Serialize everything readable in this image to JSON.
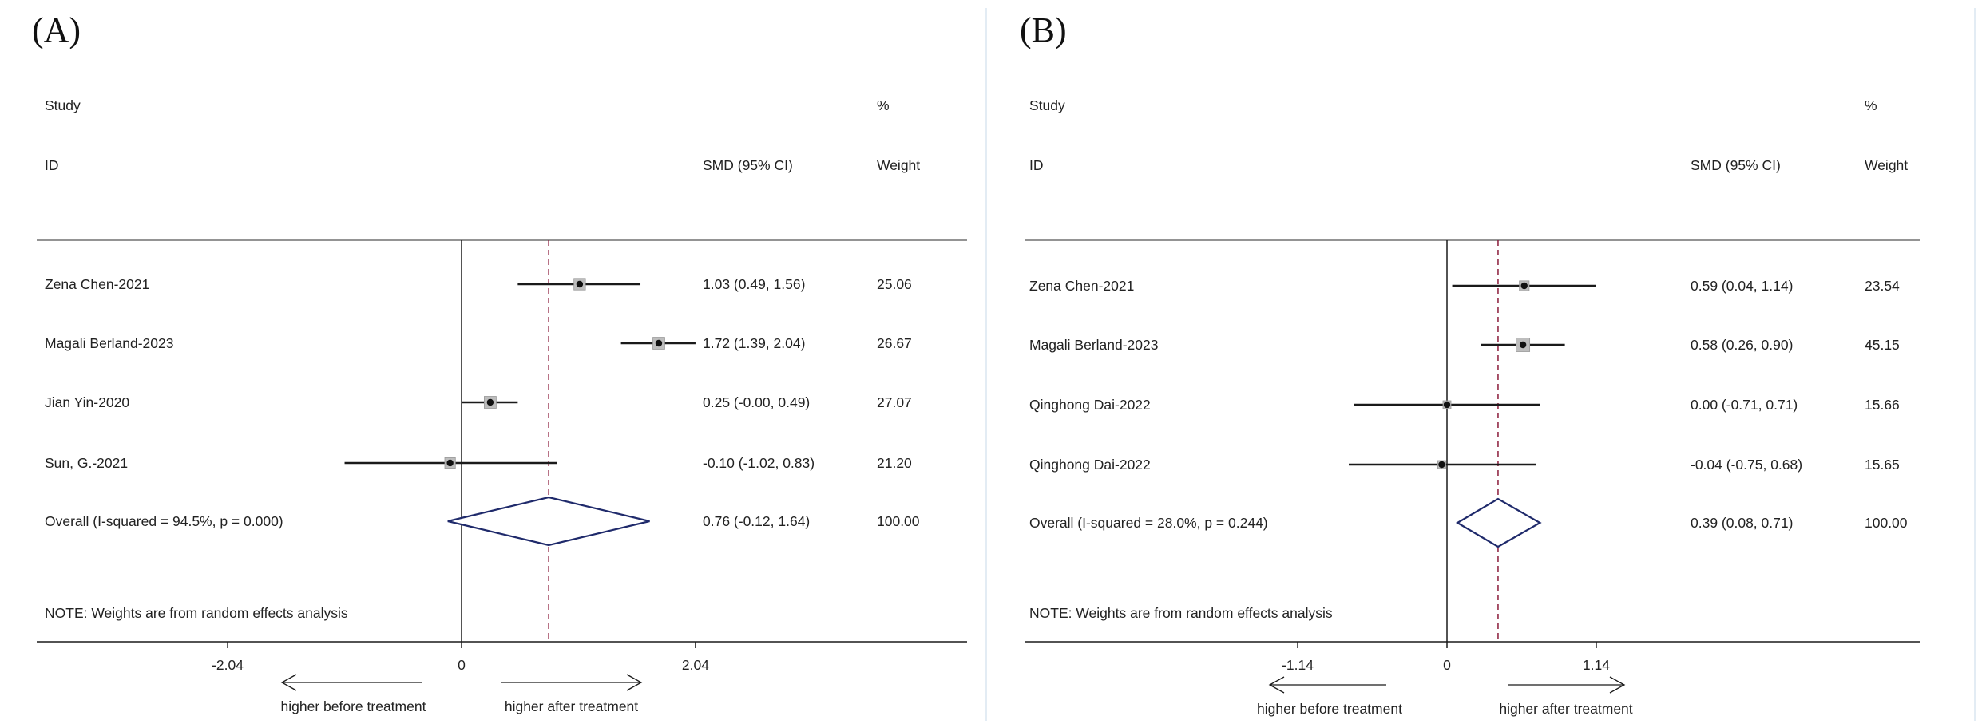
{
  "chart_data": [
    {
      "type": "forest",
      "panel_label": "(A)",
      "header": {
        "study": "Study",
        "id": "ID",
        "pct": "%",
        "effect": "SMD (95% CI)",
        "weight": "Weight"
      },
      "studies": [
        {
          "name": "Zena Chen-2021",
          "smd": 1.03,
          "lo": 0.49,
          "hi": 1.56,
          "ci_text": "1.03 (0.49, 1.56)",
          "weight": 25.06,
          "weight_text": "25.06"
        },
        {
          "name": "Magali Berland-2023",
          "smd": 1.72,
          "lo": 1.39,
          "hi": 2.04,
          "ci_text": "1.72 (1.39, 2.04)",
          "weight": 26.67,
          "weight_text": "26.67"
        },
        {
          "name": "Jian Yin-2020",
          "smd": 0.25,
          "lo": 0.0,
          "hi": 0.49,
          "ci_text": "0.25 (-0.00, 0.49)",
          "weight": 27.07,
          "weight_text": "27.07"
        },
        {
          "name": "Sun, G.-2021",
          "smd": -0.1,
          "lo": -1.02,
          "hi": 0.83,
          "ci_text": "-0.10 (-1.02, 0.83)",
          "weight": 21.2,
          "weight_text": "21.20"
        }
      ],
      "overall": {
        "label": "Overall  (I-squared = 94.5%, p = 0.000)",
        "smd": 0.76,
        "lo": -0.12,
        "hi": 1.64,
        "ci_text": "0.76 (-0.12, 1.64)",
        "weight_text": "100.00"
      },
      "note": "NOTE: Weights are from random effects analysis",
      "axis": {
        "ticks": [
          -2.04,
          0,
          2.04
        ],
        "tick_labels": [
          "-2.04",
          "0",
          "2.04"
        ],
        "xlim": [
          -2.04,
          2.04
        ]
      },
      "arrows": {
        "left": "higher before treatment",
        "right": "higher after treatment"
      }
    },
    {
      "type": "forest",
      "panel_label": "(B)",
      "header": {
        "study": "Study",
        "id": "ID",
        "pct": "%",
        "effect": "SMD (95% CI)",
        "weight": "Weight"
      },
      "studies": [
        {
          "name": "Zena Chen-2021",
          "smd": 0.59,
          "lo": 0.04,
          "hi": 1.14,
          "ci_text": "0.59 (0.04, 1.14)",
          "weight": 23.54,
          "weight_text": "23.54"
        },
        {
          "name": "Magali Berland-2023",
          "smd": 0.58,
          "lo": 0.26,
          "hi": 0.9,
          "ci_text": "0.58 (0.26, 0.90)",
          "weight": 45.15,
          "weight_text": "45.15"
        },
        {
          "name": "Qinghong Dai-2022",
          "smd": 0.0,
          "lo": -0.71,
          "hi": 0.71,
          "ci_text": "0.00 (-0.71, 0.71)",
          "weight": 15.66,
          "weight_text": "15.66"
        },
        {
          "name": "Qinghong Dai-2022",
          "smd": -0.04,
          "lo": -0.75,
          "hi": 0.68,
          "ci_text": "-0.04 (-0.75, 0.68)",
          "weight": 15.65,
          "weight_text": "15.65"
        }
      ],
      "overall": {
        "label": "Overall  (I-squared = 28.0%, p = 0.244)",
        "smd": 0.39,
        "lo": 0.08,
        "hi": 0.71,
        "ci_text": "0.39 (0.08, 0.71)",
        "weight_text": "100.00"
      },
      "note": "NOTE: Weights are from random effects analysis",
      "axis": {
        "ticks": [
          -1.14,
          0,
          1.14
        ],
        "tick_labels": [
          "-1.14",
          "0",
          "1.14"
        ],
        "xlim": [
          -1.14,
          1.14
        ]
      },
      "arrows": {
        "left": "higher before treatment",
        "right": "higher after treatment"
      }
    }
  ],
  "colors": {
    "text": "#222222",
    "line": "#1a1a1a",
    "diamond": "#1f2a6b",
    "dashed": "#8b1a3a",
    "border": "#e3ecf4",
    "box": "#bdbdbd"
  }
}
